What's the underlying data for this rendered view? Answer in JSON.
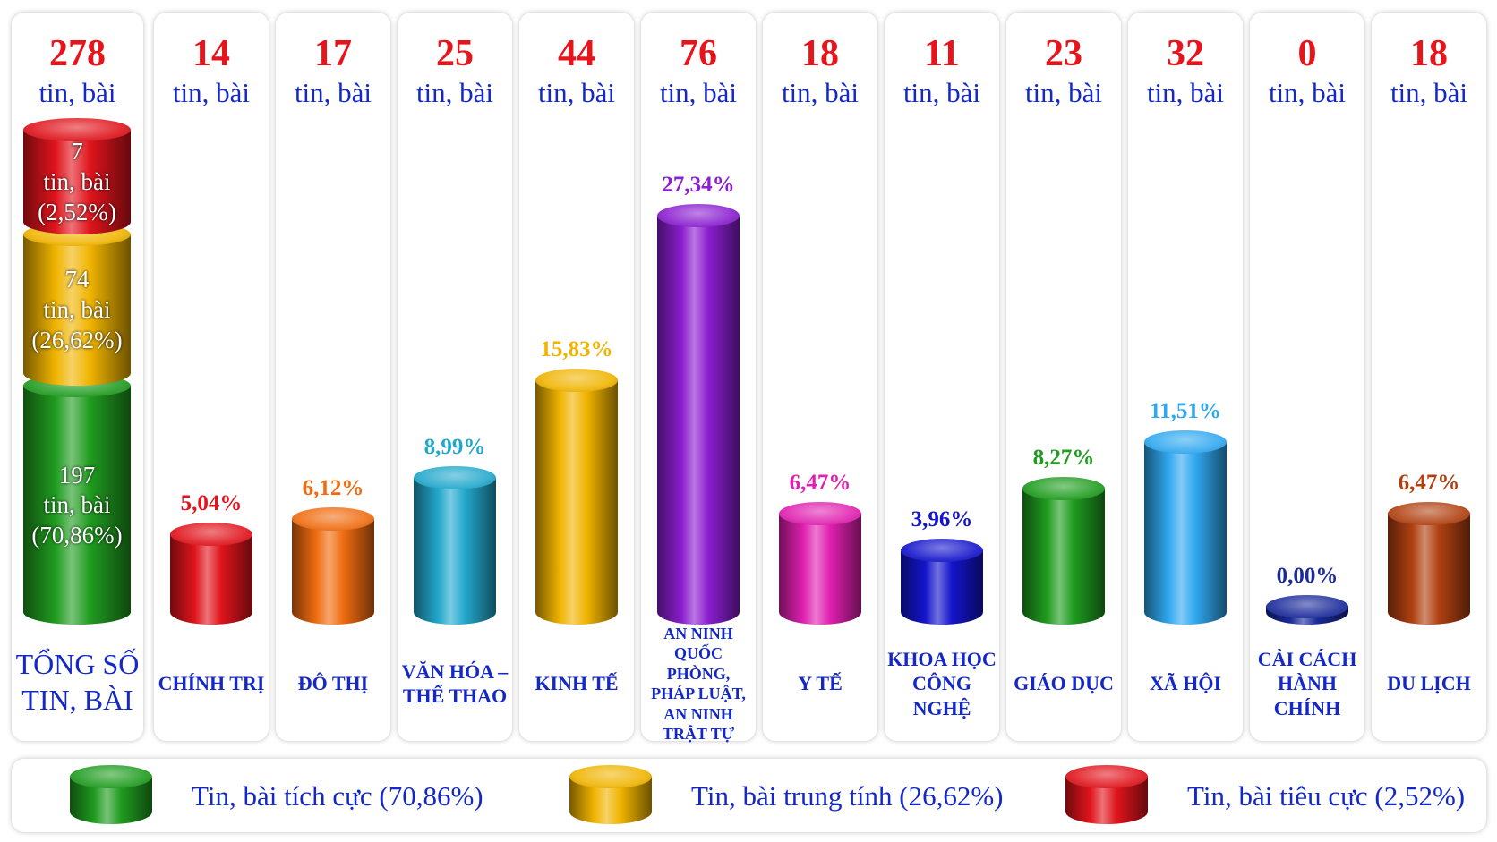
{
  "chart_data": {
    "type": "bar",
    "unit": "tin, bài",
    "total": {
      "label": "TỔNG SỐ\nTIN, BÀI",
      "value": 278,
      "segments": [
        {
          "name": "Tin, bài tích cực (70,86%)",
          "color": "#1f9c1f",
          "value": 197,
          "percent": 70.86,
          "percent_label": "(70,86%)"
        },
        {
          "name": "Tin, bài trung tính (26,62%)",
          "color": "#f0b400",
          "value": 74,
          "percent": 26.62,
          "percent_label": "(26,62%)"
        },
        {
          "name": "Tin, bài tiêu cực (2,52%)",
          "color": "#e0141c",
          "value": 7,
          "percent": 2.52,
          "percent_label": "(2,52%)"
        }
      ]
    },
    "categories": [
      "CHÍNH TRỊ",
      "ĐÔ THỊ",
      "VĂN HÓA –\nTHỂ THAO",
      "KINH TẾ",
      "AN NINH\nQUỐC PHÒNG,\nPHÁP LUẬT,\nAN NINH TRẬT TỰ",
      "Y TẾ",
      "KHOA HỌC\nCÔNG NGHỆ",
      "GIÁO DỤC",
      "XÃ HỘI",
      "CẢI CÁCH\nHÀNH CHÍNH",
      "DU LỊCH"
    ],
    "counts": [
      14,
      17,
      25,
      44,
      76,
      18,
      11,
      23,
      32,
      0,
      18
    ],
    "values": [
      5.04,
      6.12,
      8.99,
      15.83,
      27.34,
      6.47,
      3.96,
      8.27,
      11.51,
      0.0,
      6.47
    ],
    "value_labels": [
      "5,04%",
      "6,12%",
      "8,99%",
      "15,83%",
      "27,34%",
      "6,47%",
      "3,96%",
      "8,27%",
      "11,51%",
      "0,00%",
      "6,47%"
    ],
    "colors": [
      "#e0141c",
      "#f06c10",
      "#22a8cc",
      "#f0b400",
      "#8a1ed0",
      "#e020b0",
      "#1414cc",
      "#1f9c1f",
      "#30a8f0",
      "#1a2a9a",
      "#b04010"
    ]
  }
}
